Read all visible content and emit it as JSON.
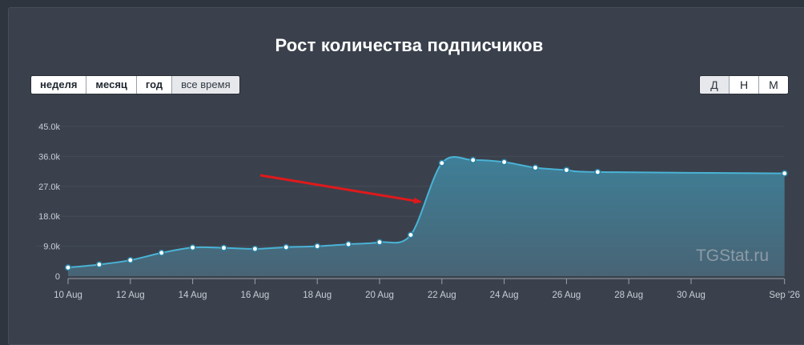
{
  "title": "Рост количества подписчиков",
  "range_buttons": [
    {
      "label": "неделя",
      "active": false
    },
    {
      "label": "месяц",
      "active": false
    },
    {
      "label": "год",
      "active": false
    },
    {
      "label": "все время",
      "active": true
    }
  ],
  "granularity_buttons": [
    {
      "label": "Д",
      "active": true
    },
    {
      "label": "Н",
      "active": false
    },
    {
      "label": "М",
      "active": false
    }
  ],
  "watermark": "TGStat.ru",
  "colors": {
    "line": "#4ab3d6",
    "area_top": "#3f8aa5",
    "area_bottom": "#4a6a7c",
    "arrow": "#e0191c",
    "grid": "#444c57",
    "text": "#c8ced6"
  },
  "chart_data": {
    "type": "area",
    "title": "Рост количества подписчиков",
    "x": [
      "10 Aug",
      "11 Aug",
      "12 Aug",
      "13 Aug",
      "14 Aug",
      "15 Aug",
      "16 Aug",
      "17 Aug",
      "18 Aug",
      "19 Aug",
      "20 Aug",
      "21 Aug",
      "22 Aug",
      "23 Aug",
      "24 Aug",
      "25 Aug",
      "26 Aug",
      "27 Aug",
      "Sep 1"
    ],
    "series": [
      {
        "values": [
          2600,
          3500,
          4800,
          7000,
          8600,
          8500,
          8200,
          8700,
          9000,
          9600,
          10200,
          12400,
          34000,
          34900,
          34300,
          32600,
          31900,
          31300,
          30900
        ]
      }
    ],
    "x_tick_labels": [
      "10 Aug",
      "12 Aug",
      "14 Aug",
      "16 Aug",
      "18 Aug",
      "20 Aug",
      "22 Aug",
      "24 Aug",
      "26 Aug",
      "28 Aug",
      "30 Aug",
      "Sep '26"
    ],
    "y_tick_labels": [
      "0",
      "9.0k",
      "18.0k",
      "27.0k",
      "36.0k",
      "45.0k"
    ],
    "ylim": [
      0,
      45000
    ],
    "grid": true,
    "annotations": [
      {
        "type": "arrow",
        "points_to": "21 Aug"
      }
    ]
  }
}
